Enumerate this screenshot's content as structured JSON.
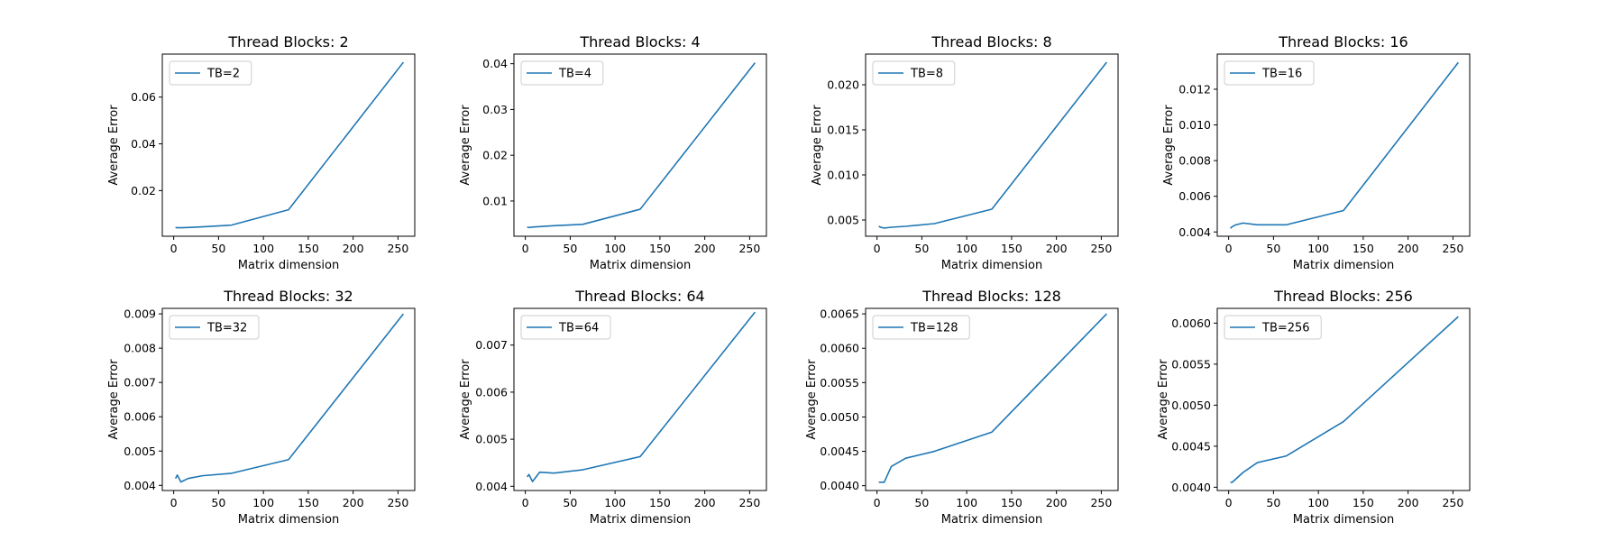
{
  "chart_data": [
    {
      "type": "line",
      "title": "Thread Blocks: 2",
      "xlabel": "Matrix dimension",
      "ylabel": "Average Error",
      "xlim": [
        -12.7,
        268.7
      ],
      "ylim": [
        0.00047,
        0.0784
      ],
      "xticks": [
        0,
        50,
        100,
        150,
        200,
        250
      ],
      "yticks": [
        0.02,
        0.04,
        0.06
      ],
      "ytick_labels": [
        "0.02",
        "0.04",
        "0.06"
      ],
      "legend_position": "upper left",
      "grid": false,
      "series": [
        {
          "name": "TB=2",
          "color": "#1f77b4",
          "x": [
            2,
            4,
            8,
            16,
            32,
            64,
            128,
            256
          ],
          "y": [
            0.0042,
            0.0041,
            0.0041,
            0.0042,
            0.0045,
            0.0052,
            0.0118,
            0.0749
          ]
        }
      ]
    },
    {
      "type": "line",
      "title": "Thread Blocks: 4",
      "xlabel": "Matrix dimension",
      "ylabel": "Average Error",
      "xlim": [
        -12.7,
        268.7
      ],
      "ylim": [
        0.0023,
        0.0421
      ],
      "xticks": [
        0,
        50,
        100,
        150,
        200,
        250
      ],
      "yticks": [
        0.01,
        0.02,
        0.03,
        0.04
      ],
      "ytick_labels": [
        "0.01",
        "0.02",
        "0.03",
        "0.04"
      ],
      "legend_position": "upper left",
      "grid": false,
      "series": [
        {
          "name": "TB=4",
          "color": "#1f77b4",
          "x": [
            2,
            4,
            8,
            16,
            32,
            64,
            128,
            256
          ],
          "y": [
            0.0043,
            0.0042,
            0.0043,
            0.0044,
            0.0046,
            0.0049,
            0.0082,
            0.0402
          ]
        }
      ]
    },
    {
      "type": "line",
      "title": "Thread Blocks: 8",
      "xlabel": "Matrix dimension",
      "ylabel": "Average Error",
      "xlim": [
        -12.7,
        268.7
      ],
      "ylim": [
        0.0032,
        0.0234
      ],
      "xticks": [
        0,
        50,
        100,
        150,
        200,
        250
      ],
      "yticks": [
        0.005,
        0.01,
        0.015,
        0.02
      ],
      "ytick_labels": [
        "0.005",
        "0.010",
        "0.015",
        "0.020"
      ],
      "legend_position": "upper left",
      "grid": false,
      "series": [
        {
          "name": "TB=8",
          "color": "#1f77b4",
          "x": [
            2,
            4,
            8,
            16,
            32,
            64,
            128,
            256
          ],
          "y": [
            0.0043,
            0.0042,
            0.0041,
            0.0042,
            0.0043,
            0.0046,
            0.0062,
            0.0225
          ]
        }
      ]
    },
    {
      "type": "line",
      "title": "Thread Blocks: 16",
      "xlabel": "Matrix dimension",
      "ylabel": "Average Error",
      "xlim": [
        -12.7,
        268.7
      ],
      "ylim": [
        0.00376,
        0.01397
      ],
      "xticks": [
        0,
        50,
        100,
        150,
        200,
        250
      ],
      "yticks": [
        0.004,
        0.006,
        0.008,
        0.01,
        0.012
      ],
      "ytick_labels": [
        "0.004",
        "0.006",
        "0.008",
        "0.010",
        "0.012"
      ],
      "legend_position": "upper left",
      "grid": false,
      "series": [
        {
          "name": "TB=16",
          "color": "#1f77b4",
          "x": [
            2,
            4,
            8,
            16,
            32,
            64,
            128,
            256
          ],
          "y": [
            0.0042,
            0.0043,
            0.0044,
            0.0045,
            0.0044,
            0.0044,
            0.0052,
            0.0135
          ]
        }
      ]
    },
    {
      "type": "line",
      "title": "Thread Blocks: 32",
      "xlabel": "Matrix dimension",
      "ylabel": "Average Error",
      "xlim": [
        -12.7,
        268.7
      ],
      "ylim": [
        0.00385,
        0.00916
      ],
      "xticks": [
        0,
        50,
        100,
        150,
        200,
        250
      ],
      "yticks": [
        0.004,
        0.005,
        0.006,
        0.007,
        0.008,
        0.009
      ],
      "ytick_labels": [
        "0.004",
        "0.005",
        "0.006",
        "0.007",
        "0.008",
        "0.009"
      ],
      "legend_position": "upper left",
      "grid": false,
      "series": [
        {
          "name": "TB=32",
          "color": "#1f77b4",
          "x": [
            2,
            4,
            8,
            16,
            32,
            64,
            128,
            256
          ],
          "y": [
            0.0042,
            0.0043,
            0.0041,
            0.0042,
            0.00428,
            0.00435,
            0.00475,
            0.009
          ]
        }
      ]
    },
    {
      "type": "line",
      "title": "Thread Blocks: 64",
      "xlabel": "Matrix dimension",
      "ylabel": "Average Error",
      "xlim": [
        -12.7,
        268.7
      ],
      "ylim": [
        0.00391,
        0.00778
      ],
      "xticks": [
        0,
        50,
        100,
        150,
        200,
        250
      ],
      "yticks": [
        0.004,
        0.005,
        0.006,
        0.007
      ],
      "ytick_labels": [
        "0.004",
        "0.005",
        "0.006",
        "0.007"
      ],
      "legend_position": "upper left",
      "grid": false,
      "series": [
        {
          "name": "TB=64",
          "color": "#1f77b4",
          "x": [
            2,
            4,
            8,
            16,
            32,
            64,
            128,
            256
          ],
          "y": [
            0.0042,
            0.00425,
            0.0041,
            0.0043,
            0.00428,
            0.00435,
            0.00463,
            0.0077
          ]
        }
      ]
    },
    {
      "type": "line",
      "title": "Thread Blocks: 128",
      "xlabel": "Matrix dimension",
      "ylabel": "Average Error",
      "xlim": [
        -12.7,
        268.7
      ],
      "ylim": [
        0.00393,
        0.00658
      ],
      "xticks": [
        0,
        50,
        100,
        150,
        200,
        250
      ],
      "yticks": [
        0.004,
        0.0045,
        0.005,
        0.0055,
        0.006,
        0.0065
      ],
      "ytick_labels": [
        "0.0040",
        "0.0045",
        "0.0050",
        "0.0055",
        "0.0060",
        "0.0065"
      ],
      "legend_position": "upper left",
      "grid": false,
      "series": [
        {
          "name": "TB=128",
          "color": "#1f77b4",
          "x": [
            2,
            4,
            8,
            16,
            32,
            64,
            128,
            256
          ],
          "y": [
            0.00405,
            0.00405,
            0.00405,
            0.00428,
            0.0044,
            0.0045,
            0.00478,
            0.0065
          ]
        }
      ]
    },
    {
      "type": "line",
      "title": "Thread Blocks: 256",
      "xlabel": "Matrix dimension",
      "ylabel": "Average Error",
      "xlim": [
        -12.7,
        268.7
      ],
      "ylim": [
        0.00396,
        0.00618
      ],
      "xticks": [
        0,
        50,
        100,
        150,
        200,
        250
      ],
      "yticks": [
        0.004,
        0.0045,
        0.005,
        0.0055,
        0.006
      ],
      "ytick_labels": [
        "0.0040",
        "0.0045",
        "0.0050",
        "0.0055",
        "0.0060"
      ],
      "legend_position": "upper left",
      "grid": false,
      "series": [
        {
          "name": "TB=256",
          "color": "#1f77b4",
          "x": [
            2,
            4,
            8,
            16,
            32,
            64,
            128,
            256
          ],
          "y": [
            0.00406,
            0.00406,
            0.0041,
            0.00418,
            0.0043,
            0.00438,
            0.0048,
            0.00608
          ]
        }
      ]
    }
  ]
}
